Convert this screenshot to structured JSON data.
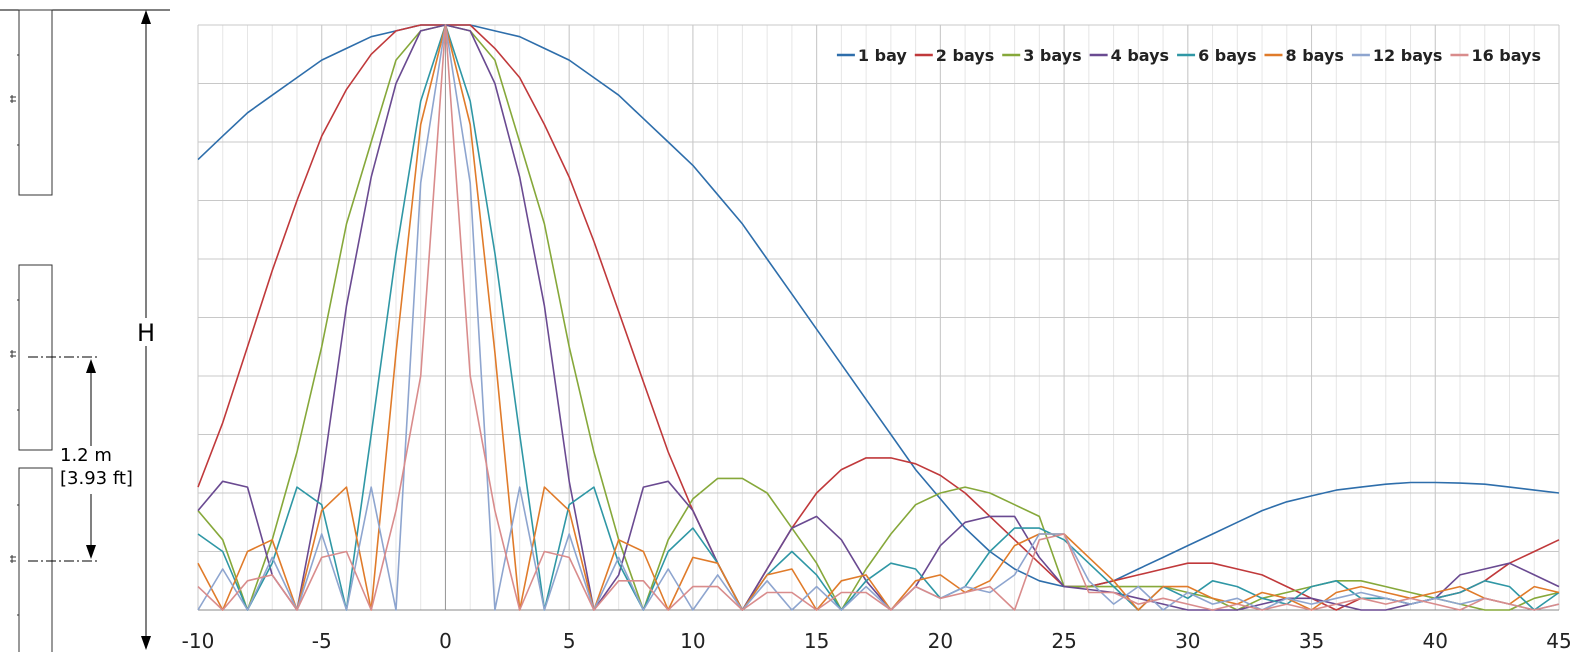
{
  "diagram": {
    "height_label": "H",
    "spacing_metric": "1.2 m",
    "spacing_imperial": "[3.93 ft]"
  },
  "chart_data": {
    "type": "line",
    "title": "",
    "xlabel": "",
    "ylabel": "",
    "xlim": [
      -10,
      45
    ],
    "ylim": [
      0,
      1
    ],
    "x_ticks": [
      -10,
      -5,
      0,
      5,
      10,
      15,
      20,
      25,
      30,
      35,
      40,
      45
    ],
    "grid": true,
    "legend_position": "top-right",
    "x": [
      -10,
      -9,
      -8,
      -7,
      -6,
      -5,
      -4,
      -3,
      -2,
      -1,
      0,
      1,
      2,
      3,
      4,
      5,
      6,
      7,
      8,
      9,
      10,
      11,
      12,
      13,
      14,
      15,
      16,
      17,
      18,
      19,
      20,
      21,
      22,
      23,
      24,
      25,
      26,
      27,
      28,
      29,
      30,
      31,
      32,
      33,
      34,
      35,
      36,
      37,
      38,
      39,
      40,
      41,
      42,
      43,
      44,
      45
    ],
    "series": [
      {
        "name": "1 bay",
        "color": "#2e6eab",
        "values": [
          0.77,
          0.81,
          0.85,
          0.88,
          0.91,
          0.94,
          0.96,
          0.98,
          0.99,
          1.0,
          1.0,
          1.0,
          0.99,
          0.98,
          0.96,
          0.94,
          0.91,
          0.88,
          0.84,
          0.8,
          0.76,
          0.71,
          0.66,
          0.6,
          0.54,
          0.48,
          0.42,
          0.36,
          0.3,
          0.24,
          0.19,
          0.14,
          0.1,
          0.07,
          0.05,
          0.04,
          0.04,
          0.05,
          0.07,
          0.09,
          0.11,
          0.13,
          0.15,
          0.17,
          0.185,
          0.195,
          0.205,
          0.21,
          0.215,
          0.218,
          0.218,
          0.217,
          0.215,
          0.21,
          0.205,
          0.2
        ]
      },
      {
        "name": "2 bays",
        "color": "#c0393b",
        "values": [
          0.21,
          0.32,
          0.45,
          0.58,
          0.7,
          0.81,
          0.89,
          0.95,
          0.99,
          1.0,
          1.0,
          1.0,
          0.96,
          0.91,
          0.83,
          0.74,
          0.63,
          0.51,
          0.39,
          0.27,
          0.17,
          0.08,
          0.0,
          0.07,
          0.14,
          0.2,
          0.24,
          0.26,
          0.26,
          0.25,
          0.23,
          0.2,
          0.16,
          0.12,
          0.08,
          0.04,
          0.04,
          0.05,
          0.06,
          0.07,
          0.08,
          0.08,
          0.07,
          0.06,
          0.04,
          0.02,
          0.0,
          0.02,
          0.02,
          0.01,
          0.02,
          0.03,
          0.05,
          0.08,
          0.1,
          0.12
        ]
      },
      {
        "name": "3 bays",
        "color": "#86a83a",
        "values": [
          0.17,
          0.12,
          0.0,
          0.12,
          0.27,
          0.45,
          0.66,
          0.8,
          0.94,
          0.99,
          1.0,
          0.99,
          0.94,
          0.8,
          0.66,
          0.45,
          0.27,
          0.12,
          0.0,
          0.12,
          0.19,
          0.225,
          0.225,
          0.2,
          0.14,
          0.08,
          0.0,
          0.07,
          0.13,
          0.18,
          0.2,
          0.21,
          0.2,
          0.18,
          0.16,
          0.04,
          0.04,
          0.04,
          0.04,
          0.04,
          0.03,
          0.02,
          0.0,
          0.02,
          0.03,
          0.04,
          0.05,
          0.05,
          0.04,
          0.03,
          0.02,
          0.01,
          0.0,
          0.0,
          0.02,
          0.03
        ]
      },
      {
        "name": "4 bays",
        "color": "#6a4a91",
        "values": [
          0.17,
          0.22,
          0.21,
          0.06,
          0.0,
          0.22,
          0.52,
          0.74,
          0.9,
          0.99,
          1.0,
          0.99,
          0.9,
          0.74,
          0.52,
          0.22,
          0.0,
          0.06,
          0.21,
          0.22,
          0.17,
          0.08,
          0.0,
          0.07,
          0.14,
          0.16,
          0.12,
          0.05,
          0.0,
          0.04,
          0.11,
          0.15,
          0.16,
          0.16,
          0.09,
          0.04,
          0.035,
          0.03,
          0.02,
          0.01,
          0.0,
          0.0,
          0.0,
          0.01,
          0.02,
          0.02,
          0.01,
          0.0,
          0.0,
          0.01,
          0.02,
          0.06,
          0.07,
          0.08,
          0.06,
          0.04
        ]
      },
      {
        "name": "6 bays",
        "color": "#2f97a5",
        "values": [
          0.13,
          0.1,
          0.0,
          0.08,
          0.21,
          0.18,
          0.0,
          0.3,
          0.61,
          0.87,
          1.0,
          0.87,
          0.61,
          0.3,
          0.0,
          0.18,
          0.21,
          0.08,
          0.0,
          0.1,
          0.14,
          0.08,
          0.0,
          0.06,
          0.1,
          0.06,
          0.0,
          0.05,
          0.08,
          0.07,
          0.02,
          0.04,
          0.1,
          0.14,
          0.14,
          0.12,
          0.08,
          0.04,
          0.0,
          0.04,
          0.02,
          0.05,
          0.04,
          0.02,
          0.01,
          0.04,
          0.05,
          0.02,
          0.02,
          0.01,
          0.02,
          0.03,
          0.05,
          0.04,
          0.0,
          0.03
        ]
      },
      {
        "name": "8 bays",
        "color": "#e07b2a",
        "values": [
          0.08,
          0.0,
          0.1,
          0.12,
          0.0,
          0.17,
          0.21,
          0.0,
          0.44,
          0.83,
          1.0,
          0.83,
          0.44,
          0.0,
          0.21,
          0.17,
          0.0,
          0.12,
          0.1,
          0.0,
          0.09,
          0.08,
          0.0,
          0.06,
          0.07,
          0.0,
          0.05,
          0.06,
          0.0,
          0.05,
          0.06,
          0.03,
          0.05,
          0.11,
          0.13,
          0.13,
          0.09,
          0.05,
          0.0,
          0.04,
          0.04,
          0.02,
          0.01,
          0.03,
          0.02,
          0.0,
          0.03,
          0.04,
          0.03,
          0.02,
          0.03,
          0.04,
          0.02,
          0.01,
          0.04,
          0.03
        ]
      },
      {
        "name": "12 bays",
        "color": "#8ea5cf",
        "values": [
          0.0,
          0.07,
          0.0,
          0.09,
          0.0,
          0.13,
          0.0,
          0.21,
          0.0,
          0.73,
          1.0,
          0.73,
          0.0,
          0.21,
          0.0,
          0.13,
          0.0,
          0.09,
          0.0,
          0.07,
          0.0,
          0.06,
          0.0,
          0.05,
          0.0,
          0.04,
          0.0,
          0.04,
          0.0,
          0.04,
          0.02,
          0.04,
          0.03,
          0.06,
          0.13,
          0.13,
          0.05,
          0.01,
          0.04,
          0.0,
          0.03,
          0.01,
          0.02,
          0.0,
          0.02,
          0.01,
          0.02,
          0.03,
          0.02,
          0.01,
          0.02,
          0.01,
          0.02,
          0.01,
          0.0,
          0.01
        ]
      },
      {
        "name": "16 bays",
        "color": "#d98c8c",
        "values": [
          0.04,
          0.0,
          0.05,
          0.06,
          0.0,
          0.09,
          0.1,
          0.0,
          0.17,
          0.4,
          1.0,
          0.4,
          0.17,
          0.0,
          0.1,
          0.09,
          0.0,
          0.05,
          0.05,
          0.0,
          0.04,
          0.04,
          0.0,
          0.03,
          0.03,
          0.0,
          0.03,
          0.03,
          0.0,
          0.04,
          0.02,
          0.03,
          0.04,
          0.0,
          0.12,
          0.13,
          0.03,
          0.03,
          0.01,
          0.02,
          0.01,
          0.0,
          0.01,
          0.0,
          0.01,
          0.0,
          0.01,
          0.02,
          0.01,
          0.02,
          0.01,
          0.0,
          0.02,
          0.01,
          0.0,
          0.01
        ]
      }
    ]
  }
}
